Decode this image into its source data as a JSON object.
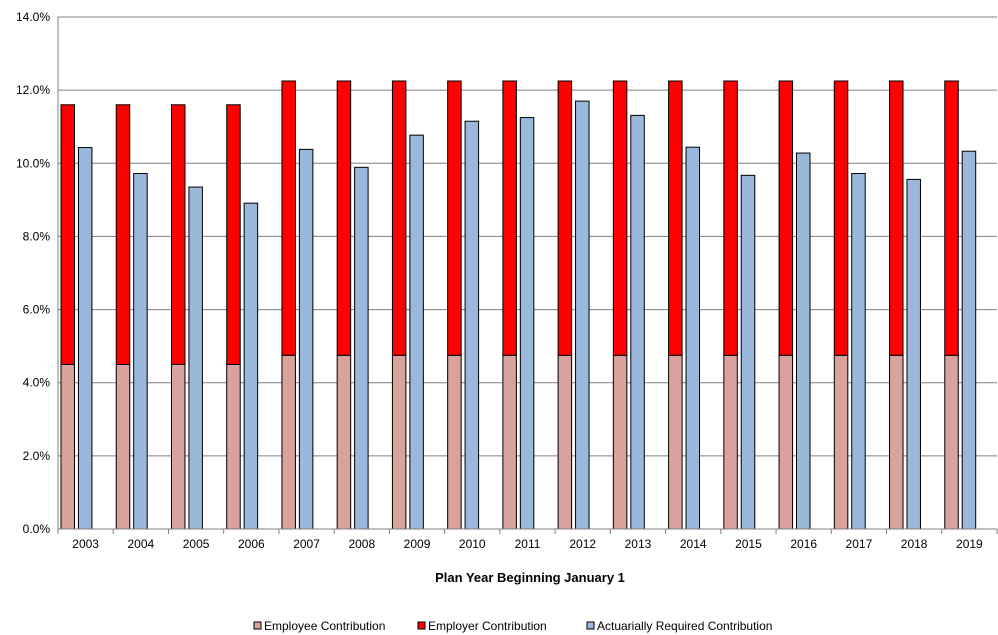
{
  "chart_data": {
    "type": "bar",
    "stacked_plus_grouped": true,
    "title": "",
    "xlabel": "Plan Year  Beginning January 1",
    "ylabel": "",
    "ylim": [
      0,
      14
    ],
    "y_ticks": [
      "0.0%",
      "2.0%",
      "4.0%",
      "6.0%",
      "8.0%",
      "10.0%",
      "12.0%",
      "14.0%"
    ],
    "y_tick_values": [
      0,
      2,
      4,
      6,
      8,
      10,
      12,
      14
    ],
    "categories": [
      "2003",
      "2004",
      "2005",
      "2006",
      "2007",
      "2008",
      "2009",
      "2010",
      "2011",
      "2012",
      "2013",
      "2014",
      "2015",
      "2016",
      "2017",
      "2018",
      "2019"
    ],
    "grid": true,
    "legend_position": "bottom",
    "series": [
      {
        "name": "Employee Contribution",
        "color": "#d9a29c",
        "stack": "contribution",
        "values": [
          4.5,
          4.5,
          4.5,
          4.5,
          4.75,
          4.75,
          4.75,
          4.75,
          4.75,
          4.75,
          4.75,
          4.75,
          4.75,
          4.75,
          4.75,
          4.75,
          4.75
        ]
      },
      {
        "name": "Employer Contribution",
        "color": "#ff0000",
        "stack": "contribution",
        "values": [
          7.1,
          7.1,
          7.1,
          7.1,
          7.5,
          7.5,
          7.5,
          7.5,
          7.5,
          7.5,
          7.5,
          7.5,
          7.5,
          7.5,
          7.5,
          7.5,
          7.5
        ]
      },
      {
        "name": "Actuarially Required Contribution",
        "color": "#9ab7dc",
        "stack": "required",
        "values": [
          10.43,
          9.72,
          9.35,
          8.91,
          10.38,
          9.89,
          10.77,
          11.15,
          11.25,
          11.7,
          11.31,
          10.44,
          9.67,
          10.28,
          9.72,
          9.56,
          10.33
        ]
      }
    ]
  }
}
